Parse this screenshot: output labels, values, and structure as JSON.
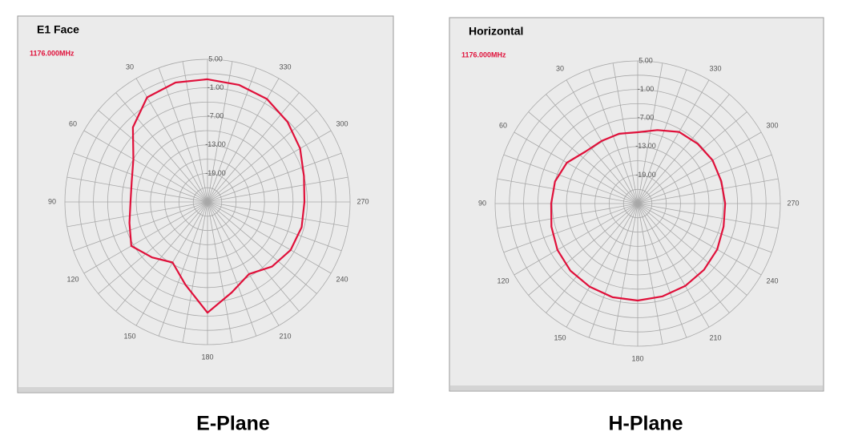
{
  "chart_data": [
    {
      "type": "polar",
      "title": "E1 Face",
      "caption": "E-Plane",
      "theta": [
        0,
        15,
        30,
        45,
        60,
        75,
        90,
        105,
        120,
        135,
        150,
        165,
        180,
        195,
        210,
        225,
        240,
        255,
        270,
        285,
        300,
        315,
        330,
        345
      ],
      "series": [
        {
          "name": "1176.000MHz",
          "color": "#e0103a",
          "values": [
            0.8,
            1.0,
            0.4,
            -2.8,
            -7.0,
            -8.5,
            -8.8,
            -8.0,
            -6.5,
            -8.5,
            -10.3,
            -7.0,
            -1.7,
            -5.3,
            -7.5,
            -5.8,
            -4.8,
            -4.5,
            -4.6,
            -4.0,
            -2.5,
            -1.2,
            0.0,
            0.5
          ]
        }
      ],
      "rlim": [
        -25,
        5
      ],
      "rticks": [
        {
          "value": 5,
          "label": "5.00"
        },
        {
          "value": -1,
          "label": "-1.00"
        },
        {
          "value": -7,
          "label": "-7.00"
        },
        {
          "value": -13,
          "label": "-13.00"
        },
        {
          "value": -19,
          "label": "-19.00"
        }
      ],
      "thetaticks": [
        30,
        60,
        90,
        120,
        150,
        180,
        210,
        240,
        270,
        300,
        330
      ],
      "theta_direction": "counterclockwise",
      "grid": true
    },
    {
      "type": "polar",
      "title": "Horizontal",
      "caption": "H-Plane",
      "theta": [
        0,
        15,
        30,
        45,
        60,
        75,
        90,
        105,
        120,
        135,
        150,
        165,
        180,
        195,
        210,
        225,
        240,
        255,
        270,
        285,
        300,
        315,
        330,
        345
      ],
      "series": [
        {
          "name": "1176.000MHz",
          "color": "#e0103a",
          "values": [
            -10.0,
            -9.8,
            -9.8,
            -9.5,
            -7.8,
            -7.0,
            -6.8,
            -6.2,
            -5.5,
            -5.0,
            -4.8,
            -4.6,
            -4.6,
            -4.8,
            -5.0,
            -5.3,
            -5.7,
            -6.3,
            -6.6,
            -6.8,
            -6.8,
            -7.2,
            -7.6,
            -9.0
          ]
        }
      ],
      "rlim": [
        -25,
        5
      ],
      "rticks": [
        {
          "value": 5,
          "label": "5.00"
        },
        {
          "value": -1,
          "label": "-1.00"
        },
        {
          "value": -7,
          "label": "-7.00"
        },
        {
          "value": -13,
          "label": "-13.00"
        },
        {
          "value": -19,
          "label": "-19.00"
        }
      ],
      "thetaticks": [
        30,
        60,
        90,
        120,
        150,
        180,
        210,
        240,
        270,
        300,
        330
      ],
      "theta_direction": "counterclockwise",
      "grid": true
    }
  ]
}
